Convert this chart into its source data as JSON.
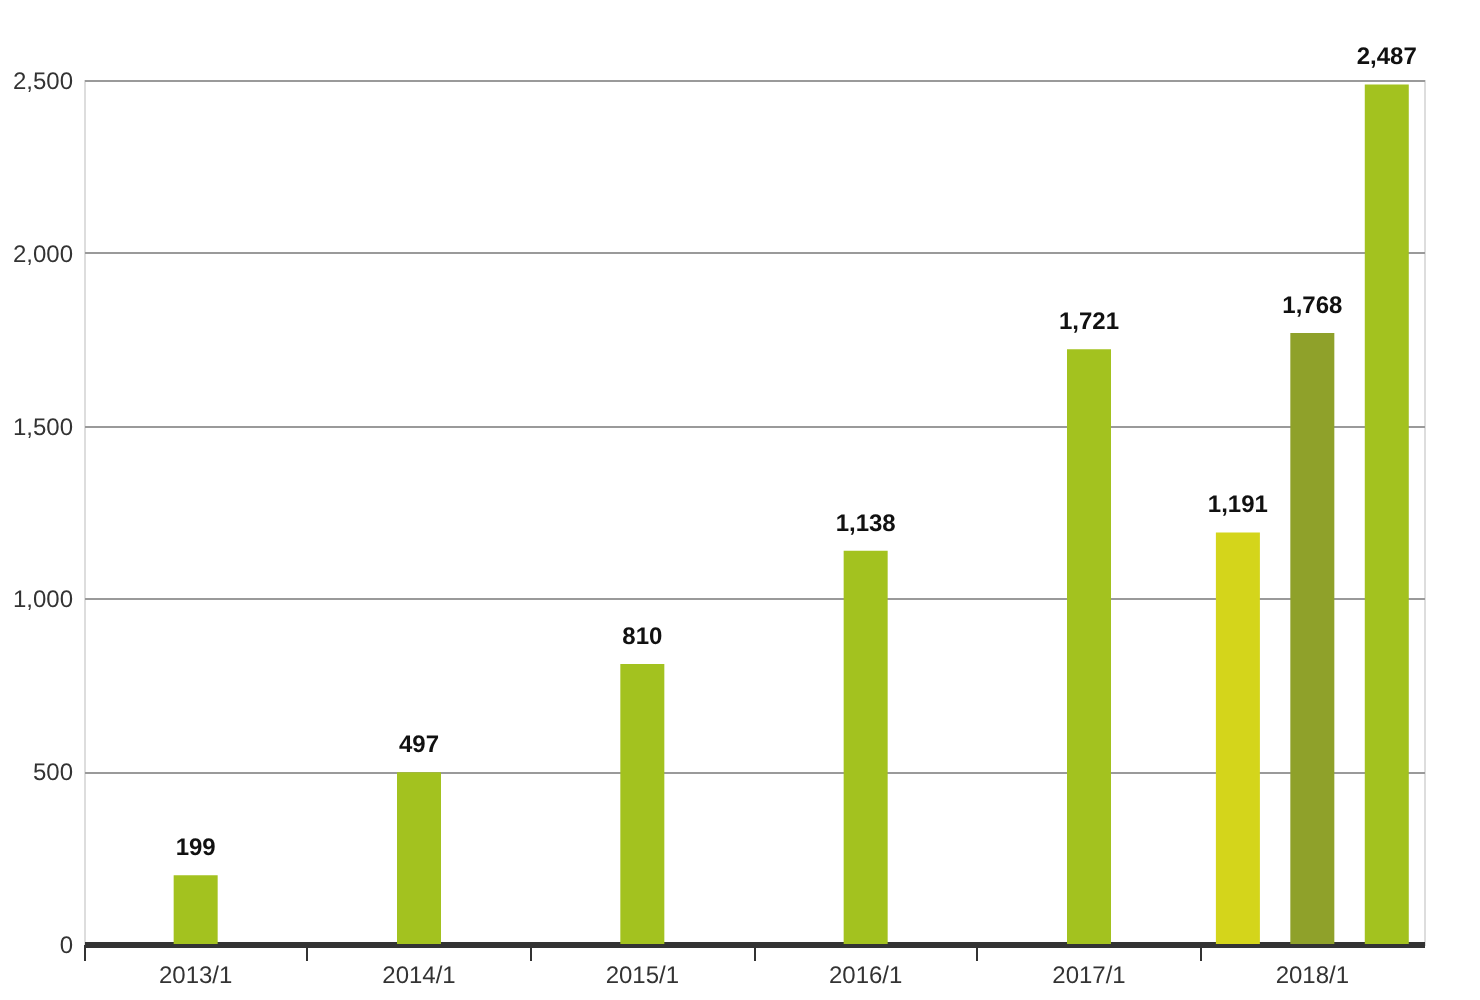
{
  "chart_data": {
    "type": "bar",
    "categories": [
      "2013/1",
      "2014/1",
      "2015/1",
      "2016/1",
      "2017/1",
      "2018/1"
    ],
    "series": [
      {
        "color": "#a3c21f",
        "values": [
          199,
          497,
          810,
          1138,
          1721,
          null
        ],
        "value_labels": [
          "199",
          "497",
          "810",
          "1,138",
          "1,721",
          null
        ]
      },
      {
        "color": "#d4d51b",
        "values": [
          null,
          null,
          null,
          null,
          null,
          1191
        ],
        "value_labels": [
          null,
          null,
          null,
          null,
          null,
          "1,191"
        ]
      },
      {
        "color": "#8fa12a",
        "values": [
          null,
          null,
          null,
          null,
          null,
          1768
        ],
        "value_labels": [
          null,
          null,
          null,
          null,
          null,
          "1,768"
        ]
      },
      {
        "color": "#a3c21f",
        "values": [
          null,
          null,
          null,
          null,
          null,
          2487
        ],
        "value_labels": [
          null,
          null,
          null,
          null,
          null,
          "2,487"
        ]
      }
    ],
    "ylim": [
      0,
      2500
    ],
    "yticks": [
      {
        "value": 0,
        "label": "0"
      },
      {
        "value": 500,
        "label": "500"
      },
      {
        "value": 1000,
        "label": "1,000"
      },
      {
        "value": 1500,
        "label": "1,500"
      },
      {
        "value": 2000,
        "label": "2,000"
      },
      {
        "value": 2500,
        "label": "2,500"
      }
    ],
    "grid": "y"
  }
}
